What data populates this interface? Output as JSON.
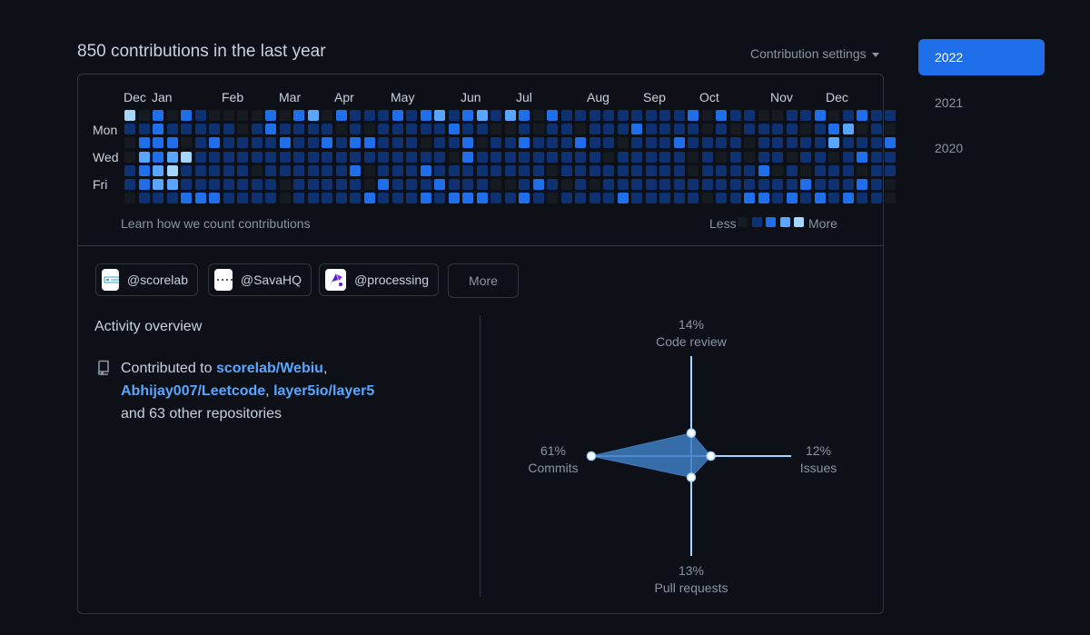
{
  "header": {
    "title": "850 contributions in the last year",
    "settings_label": "Contribution settings"
  },
  "years": [
    "2022",
    "2021",
    "2020"
  ],
  "calendar": {
    "months": [
      "Dec",
      "Jan",
      "Feb",
      "Mar",
      "Apr",
      "May",
      "Jun",
      "Jul",
      "Aug",
      "Sep",
      "Oct",
      "Nov",
      "Dec"
    ],
    "day_labels": [
      "Mon",
      "Wed",
      "Fri"
    ],
    "learn_link": "Learn how we count contributions",
    "legend_less": "Less",
    "legend_more": "More",
    "colors": [
      "#161b22",
      "#0e3271",
      "#1f6feb",
      "#58a6ff",
      "#a5d6ff"
    ],
    "levels": [
      "4020210000202302111212312313202111111111202110011201211",
      "1121111101211110101111121100101101112111101011110123010",
      "0222012111121121221110112011211121101112111101111131112",
      "0323411111111111111111102111111111011111010101101101211",
      "1234111110111111201112111111110111111111011112010111011",
      "1233111111101111102111211100121010111111111111112111210",
      "0111222111101111121112122211210111121111101122121212110"
    ]
  },
  "orgs": [
    {
      "name": "@scorelab",
      "logo": "scorelab-logo"
    },
    {
      "name": "@SavaHQ",
      "logo": "savahq-logo"
    },
    {
      "name": "@processing",
      "logo": "processing-logo"
    }
  ],
  "orgs_more": "More",
  "activity": {
    "title": "Activity overview",
    "contributed_prefix": "Contributed to",
    "repos": [
      "scorelab/Webiu",
      "Abhijay007/Leetcode",
      "layer5io/layer5"
    ],
    "suffix": "and 63 other repositories"
  },
  "radar": {
    "accent": "#a5d6ff",
    "fill": "#3e7dc2",
    "axes": [
      {
        "key": "code_review",
        "label": "Code review",
        "percent": 14
      },
      {
        "key": "issues",
        "label": "Issues",
        "percent": 12
      },
      {
        "key": "pull_requests",
        "label": "Pull requests",
        "percent": 13
      },
      {
        "key": "commits",
        "label": "Commits",
        "percent": 61
      }
    ]
  }
}
